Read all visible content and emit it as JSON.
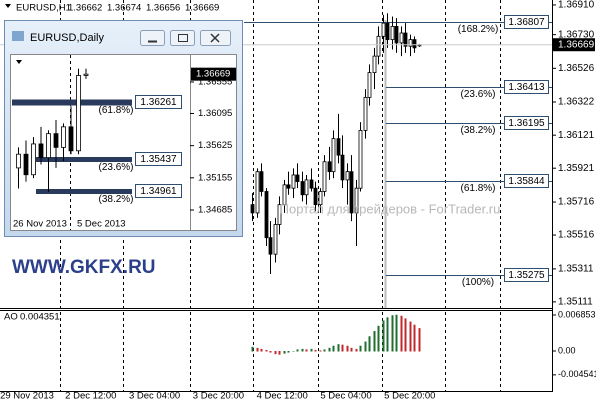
{
  "main_chart": {
    "symbol": "EURUSD,H1",
    "price_range": [
      1.35074,
      1.3694
    ],
    "price_ticks": [
      {
        "value": 1.3691,
        "label": "1.36910"
      },
      {
        "value": 1.3673,
        "label": "1.36730"
      },
      1.36526,
      1.36322,
      1.36121,
      1.35921,
      1.35716,
      1.35516,
      1.35311,
      1.35111
    ],
    "candles": [
      [
        1.357,
        1.3577,
        1.356,
        1.3565
      ],
      [
        1.3565,
        1.3592,
        1.3562,
        1.359
      ],
      [
        1.359,
        1.3595,
        1.3575,
        1.3578
      ],
      [
        1.3578,
        1.358,
        1.3545,
        1.355
      ],
      [
        1.355,
        1.356,
        1.3528,
        1.354
      ],
      [
        1.354,
        1.3562,
        1.3535,
        1.3558
      ],
      [
        1.3558,
        1.3575,
        1.3552,
        1.357
      ],
      [
        1.357,
        1.3585,
        1.3565,
        1.3582
      ],
      [
        1.3582,
        1.359,
        1.3576,
        1.358
      ],
      [
        1.358,
        1.3592,
        1.3574,
        1.3588
      ],
      [
        1.3588,
        1.3595,
        1.358,
        1.3584
      ],
      [
        1.3584,
        1.359,
        1.3572,
        1.3576
      ],
      [
        1.3576,
        1.3588,
        1.357,
        1.3585
      ],
      [
        1.3585,
        1.3592,
        1.3578,
        1.358
      ],
      [
        1.358,
        1.3584,
        1.3566,
        1.357
      ],
      [
        1.357,
        1.358,
        1.3565,
        1.3578
      ],
      [
        1.3578,
        1.36,
        1.3575,
        1.3596
      ],
      [
        1.3596,
        1.3605,
        1.3585,
        1.359
      ],
      [
        1.359,
        1.3615,
        1.3586,
        1.361
      ],
      [
        1.361,
        1.3625,
        1.3595,
        1.36
      ],
      [
        1.36,
        1.3612,
        1.358,
        1.3585
      ],
      [
        1.3585,
        1.3595,
        1.357,
        1.359
      ],
      [
        1.359,
        1.36,
        1.356,
        1.3565
      ],
      [
        1.3565,
        1.3585,
        1.3545,
        1.358
      ],
      [
        1.358,
        1.362,
        1.3578,
        1.3615
      ],
      [
        1.3615,
        1.364,
        1.361,
        1.3635
      ],
      [
        1.3635,
        1.3655,
        1.363,
        1.365
      ],
      [
        1.365,
        1.3665,
        1.364,
        1.366
      ],
      [
        1.366,
        1.3678,
        1.3655,
        1.3672
      ],
      [
        1.3672,
        1.3685,
        1.3662,
        1.368
      ],
      [
        1.368,
        1.3686,
        1.3665,
        1.367
      ],
      [
        1.367,
        1.3684,
        1.3664,
        1.3678
      ],
      [
        1.3678,
        1.3683,
        1.3662,
        1.3668
      ],
      [
        1.3668,
        1.3678,
        1.366,
        1.3674
      ],
      [
        1.3674,
        1.368,
        1.3662,
        1.3666
      ],
      [
        1.3666,
        1.3673,
        1.366,
        1.367
      ],
      [
        1.367,
        1.3672,
        1.3662,
        1.3665
      ],
      [
        1.36662,
        1.36674,
        1.36656,
        1.36669
      ]
    ],
    "fib_levels": [
      {
        "ratio": "(168.2%)",
        "price": 1.36807
      },
      {
        "ratio": "(23.6%)",
        "price": 1.36413
      },
      {
        "ratio": "(38.2%)",
        "price": 1.36195
      },
      {
        "ratio": "(61.8%)",
        "price": 1.35844
      },
      {
        "ratio": "(100%)",
        "price": 1.35275
      }
    ],
    "time_labels": [
      "29 Nov 2013",
      "2 Dec 12:00",
      "3 Dec 04:00",
      "3 Dec 20:00",
      "4 Dec 12:00",
      "5 Dec 04:00",
      "5 Dec 20:00"
    ]
  },
  "inset": {
    "title": "EURUSD,Daily",
    "price_range": [
      1.34393,
      1.36949
    ],
    "price_ticks": [
      1.36555,
      1.36095,
      1.35625,
      1.35155,
      1.34685
    ],
    "candles": [
      [
        1.353,
        1.356,
        1.35,
        1.355
      ],
      [
        1.355,
        1.357,
        1.351,
        1.352
      ],
      [
        1.352,
        1.3575,
        1.3515,
        1.3565
      ],
      [
        1.3565,
        1.359,
        1.3535,
        1.3545
      ],
      [
        1.3545,
        1.3585,
        1.3495,
        1.358
      ],
      [
        1.358,
        1.36,
        1.353,
        1.356
      ],
      [
        1.356,
        1.3595,
        1.354,
        1.359
      ],
      [
        1.359,
        1.362,
        1.355,
        1.3555
      ],
      [
        1.3555,
        1.3675,
        1.355,
        1.3665
      ],
      [
        1.3665,
        1.3675,
        1.366,
        1.36669
      ]
    ],
    "fib_levels": [
      {
        "ratio": "(61.8%)",
        "price": 1.36261
      },
      {
        "ratio": "(23.6%)",
        "price": 1.35437
      },
      {
        "ratio": "(38.2%)",
        "price": 1.34961
      }
    ],
    "date_labels": [
      "26 Nov 2013",
      "5 Dec 2013"
    ]
  },
  "indicator": {
    "name": "AO",
    "range": [
      -0.0078,
      0.0078
    ],
    "ticks": [
      0.006853,
      {
        "value": 0,
        "label": "0.00"
      },
      -0.004541
    ],
    "values": [
      0.0008,
      0.0006,
      0.0004,
      0.0002,
      -0.0002,
      -0.0005,
      -0.0006,
      -0.0004,
      -0.0002,
      0,
      0.0003,
      0.0004,
      0.0003,
      0.0004,
      0.0002,
      0.0001,
      0.0003,
      0.0006,
      0.001,
      0.0013,
      0.0012,
      0.001,
      0.0006,
      0.0004,
      0.001,
      0.0018,
      0.0028,
      0.0038,
      0.0048,
      0.0058,
      0.0064,
      0.0068,
      0.0069,
      0.0067,
      0.0062,
      0.0056,
      0.005,
      0.004351
    ]
  },
  "watermarks": [
    "Портал для трейдеров - ForTrader.ru",
    "WWW.GKFX.RU"
  ]
}
